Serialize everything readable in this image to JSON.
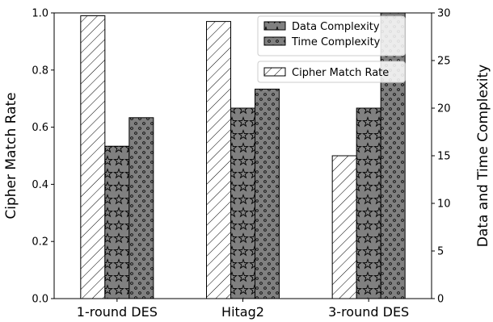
{
  "chart_data": {
    "type": "bar",
    "categories": [
      "1-round DES",
      "Hitag2",
      "3-round DES"
    ],
    "series": [
      {
        "name": "Cipher Match Rate",
        "axis": "left",
        "values": [
          0.99,
          0.97,
          0.5
        ],
        "color": "#ffffff",
        "pattern": "diagonal-hatch"
      },
      {
        "name": "Data Complexity",
        "axis": "right",
        "values": [
          16,
          20,
          20
        ],
        "color": "#808080",
        "pattern": "stars"
      },
      {
        "name": "Time Complexity",
        "axis": "right",
        "values": [
          19,
          22,
          30
        ],
        "color": "#808080",
        "pattern": "dots"
      }
    ],
    "ylabel": "Cipher Match Rate",
    "y2label": "Data and Time Complexity",
    "ylim": [
      0.0,
      1.0
    ],
    "y2lim": [
      0,
      30
    ],
    "yticks": [
      "0.0",
      "0.2",
      "0.4",
      "0.6",
      "0.8",
      "1.0"
    ],
    "y2ticks": [
      "0",
      "5",
      "10",
      "15",
      "20",
      "25",
      "30"
    ],
    "grid": false,
    "legend_placement": "top-right"
  }
}
